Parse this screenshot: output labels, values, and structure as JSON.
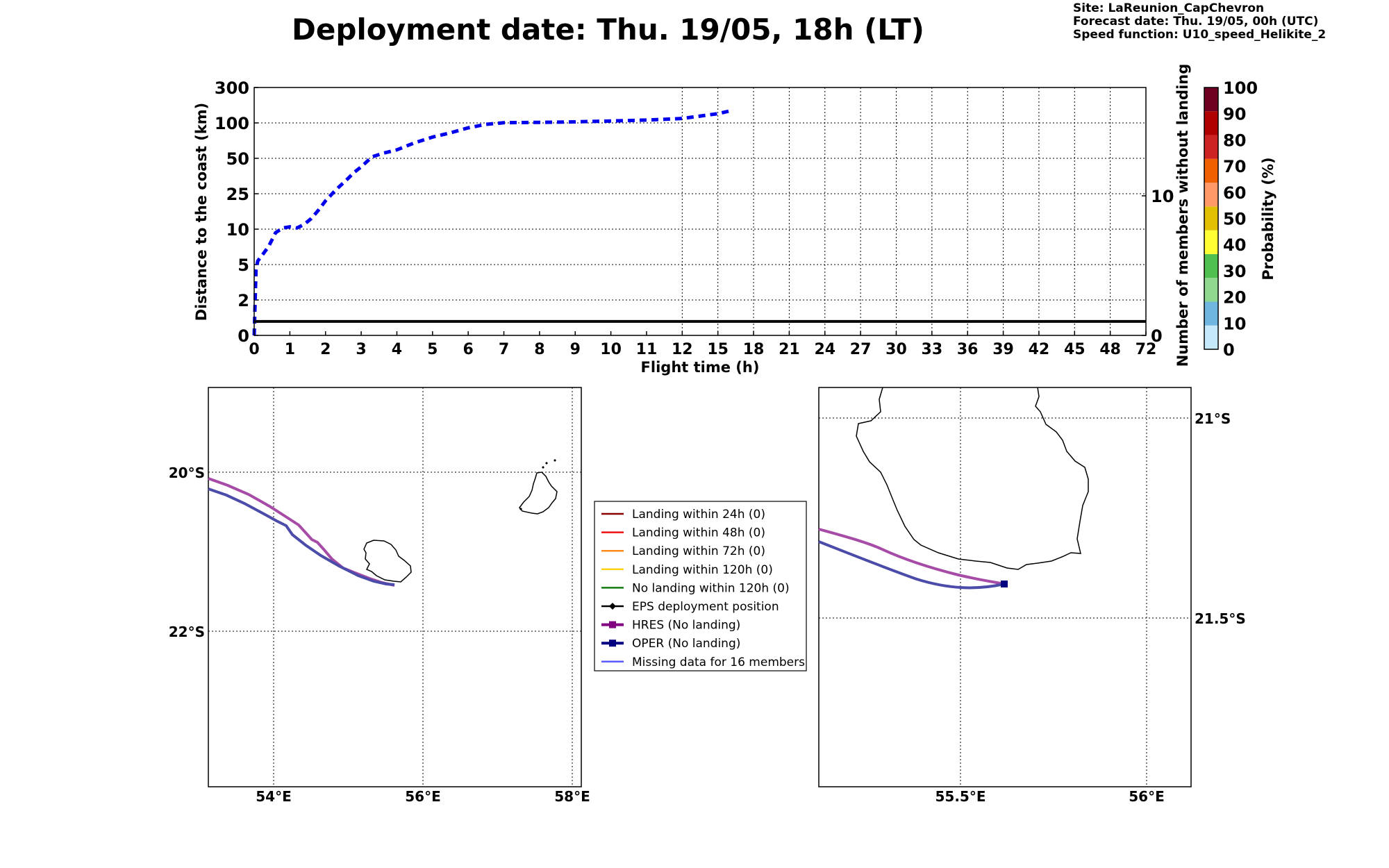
{
  "header": {
    "title": "Deployment date: Thu. 19/05, 18h (LT)",
    "site": "Site: LaReunion_CapChevron",
    "forecast": "Forecast date: Thu. 19/05, 00h (UTC)",
    "speed": "Speed function: U10_speed_Helikite_2"
  },
  "colors": {
    "distance_line": "#0000ee",
    "hres": "#a64ca6",
    "oper": "#4b4baa",
    "coast": "#000000"
  },
  "chart_data": [
    {
      "type": "line",
      "xlabel": "Flight time (h)",
      "ylabel": "Distance to the coast (km)",
      "ylabel_right": "Number of members without landing",
      "x_ticks": [
        "0",
        "1",
        "2",
        "3",
        "4",
        "5",
        "6",
        "7",
        "8",
        "9",
        "10",
        "11",
        "12",
        "15",
        "18",
        "21",
        "24",
        "27",
        "30",
        "33",
        "36",
        "39",
        "42",
        "45",
        "48",
        "72"
      ],
      "y_ticks": [
        "0",
        "2",
        "5",
        "10",
        "25",
        "50",
        "100",
        "300"
      ],
      "y2_ticks": [
        "0",
        "10"
      ],
      "grid": true,
      "series": [
        {
          "style": "dashed",
          "points": [
            [
              0,
              0
            ],
            [
              0.05,
              4.5
            ],
            [
              0.1,
              5.5
            ],
            [
              0.25,
              6.5
            ],
            [
              0.4,
              7.5
            ],
            [
              0.6,
              9.5
            ],
            [
              0.8,
              10.5
            ],
            [
              1.0,
              11
            ],
            [
              1.2,
              10.5
            ],
            [
              1.4,
              12
            ],
            [
              1.6,
              14.5
            ],
            [
              1.8,
              18
            ],
            [
              2.0,
              22
            ],
            [
              2.3,
              28
            ],
            [
              2.6,
              35
            ],
            [
              2.8,
              40
            ],
            [
              3.0,
              44
            ],
            [
              3.3,
              52
            ],
            [
              3.6,
              57
            ],
            [
              4.0,
              62
            ],
            [
              4.5,
              72
            ],
            [
              5.0,
              80
            ],
            [
              5.5,
              86
            ],
            [
              6.0,
              93
            ],
            [
              6.5,
              98
            ],
            [
              7.0,
              101
            ],
            [
              8.0,
              103
            ],
            [
              9.0,
              106
            ],
            [
              10.0,
              111
            ],
            [
              11.0,
              116
            ],
            [
              12.0,
              125
            ],
            [
              15.0,
              152
            ],
            [
              16.3,
              172
            ]
          ]
        },
        {
          "style": "solid",
          "axis": "right",
          "points": [
            [
              0,
              1
            ],
            [
              72,
              1
            ]
          ]
        }
      ]
    },
    {
      "type": "map",
      "lon_ticks": [
        "54°E",
        "56°E",
        "58°E"
      ],
      "lat_ticks": [
        "20°S",
        "22°S"
      ],
      "tracks": [
        "HRES",
        "OPER"
      ]
    },
    {
      "type": "map",
      "lon_ticks": [
        "55.5°E",
        "56°E"
      ],
      "lat_ticks": [
        "21°S",
        "21.5°S"
      ],
      "tracks": [
        "HRES",
        "OPER"
      ]
    }
  ],
  "legend": [
    {
      "label": "Landing within 24h (0)",
      "color": "#8b0000",
      "marker": "none"
    },
    {
      "label": "Landing within 48h (0)",
      "color": "#ee1111",
      "marker": "none"
    },
    {
      "label": "Landing within 72h (0)",
      "color": "#ff8c1a",
      "marker": "none"
    },
    {
      "label": "Landing within 120h (0)",
      "color": "#ffd21a",
      "marker": "none"
    },
    {
      "label": "No landing within 120h (0)",
      "color": "#117a11",
      "marker": "none"
    },
    {
      "label": "EPS deployment position",
      "color": "#000000",
      "marker": "diamond"
    },
    {
      "label": "HRES (No landing)",
      "color": "#800080",
      "marker": "square"
    },
    {
      "label": "OPER (No landing)",
      "color": "#000080",
      "marker": "square"
    },
    {
      "label": "Missing data for 16 members",
      "color": "#5a5aff",
      "marker": "none"
    }
  ],
  "colorbar": {
    "label": "Probability (%)",
    "ticks": [
      "0",
      "10",
      "20",
      "30",
      "40",
      "50",
      "60",
      "70",
      "80",
      "90",
      "100"
    ],
    "colors": [
      "#c6e8fb",
      "#6fb6e0",
      "#8fd68f",
      "#4fbf4f",
      "#ffff33",
      "#e0c000",
      "#ff9966",
      "#f06000",
      "#cc2222",
      "#b00000",
      "#700020"
    ]
  }
}
